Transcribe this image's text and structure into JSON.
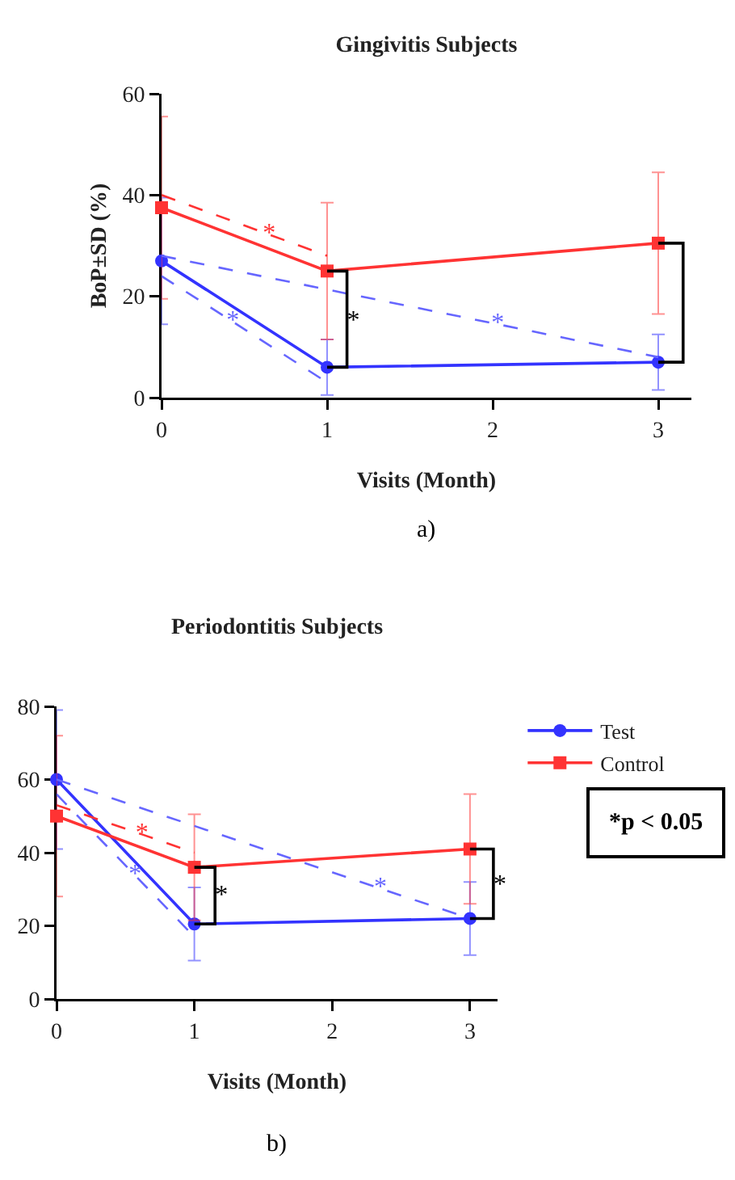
{
  "chart_data": [
    {
      "type": "line",
      "title": "Gingivitis Subjects",
      "xlabel": "Visits (Month)",
      "ylabel": "BoP±SD (%)",
      "x": [
        0,
        1,
        3
      ],
      "xlim": [
        0,
        3.2
      ],
      "xticks": [
        0,
        1,
        2,
        3
      ],
      "ylim": [
        0,
        60
      ],
      "yticks": [
        0,
        20,
        40,
        60
      ],
      "grid": false,
      "legend": false,
      "series": [
        {
          "color": "#3333ff",
          "marker": "circle",
          "values": [
            27,
            6,
            7
          ],
          "errors": [
            12.5,
            5.5,
            5.5
          ]
        },
        {
          "color": "#ff3333",
          "marker": "square",
          "values": [
            37.5,
            25,
            30.5
          ],
          "errors": [
            18,
            13.5,
            14
          ]
        },
        {
          "color": "#ff3333",
          "marker": "none",
          "line_style": "dashed",
          "x": [
            0,
            0.65,
            1
          ],
          "values": [
            40,
            32.2,
            28
          ],
          "value_labels": [
            null,
            "*",
            null
          ]
        },
        {
          "color": "#6666ff",
          "marker": "none",
          "line_style": "dashed",
          "x": [
            0,
            2.03,
            3
          ],
          "values": [
            28,
            14.5,
            8
          ],
          "value_labels": [
            null,
            "*",
            null
          ]
        },
        {
          "color": "#6666ff",
          "marker": "none",
          "line_style": "dashed",
          "x": [
            0,
            0.43,
            1
          ],
          "values": [
            24,
            15,
            3
          ],
          "value_labels": [
            null,
            "*",
            null
          ]
        },
        {
          "color": "#000000",
          "marker": "none",
          "x": [
            1,
            1.12,
            1.12,
            1.12,
            1
          ],
          "values": [
            6,
            6,
            15,
            25,
            25
          ],
          "value_labels": [
            null,
            null,
            "*",
            null,
            null
          ]
        },
        {
          "color": "#000000",
          "marker": "none",
          "x": [
            3,
            3.15,
            3.15,
            3
          ],
          "values": [
            7,
            7,
            30.5,
            30.5
          ]
        }
      ],
      "annotations": [
        "a)"
      ]
    },
    {
      "type": "line",
      "title": "Periodontitis Subjects",
      "xlabel": "Visits (Month)",
      "x": [
        0,
        1,
        3
      ],
      "xlim": [
        0,
        3.2
      ],
      "xticks": [
        0,
        1,
        2,
        3
      ],
      "ylim": [
        0,
        80
      ],
      "yticks": [
        0,
        20,
        40,
        60,
        80
      ],
      "grid": false,
      "legend": "top right",
      "series": [
        {
          "name": "Test",
          "color": "#3333ff",
          "marker": "circle",
          "values": [
            60,
            20.5,
            22
          ],
          "errors": [
            19,
            10,
            10
          ]
        },
        {
          "name": "Control",
          "color": "#ff3333",
          "marker": "square",
          "values": [
            50,
            36,
            41
          ],
          "errors": [
            22,
            14.5,
            15
          ]
        },
        {
          "color": "#ff3333",
          "marker": "none",
          "line_style": "dashed",
          "x": [
            0,
            0.62,
            1
          ],
          "values": [
            53,
            45,
            40
          ],
          "value_labels": [
            null,
            "*",
            null
          ]
        },
        {
          "color": "#6666ff",
          "marker": "none",
          "line_style": "dashed",
          "x": [
            0,
            2.35,
            3
          ],
          "values": [
            60,
            30.2,
            22
          ],
          "value_labels": [
            null,
            "*",
            null
          ]
        },
        {
          "color": "#6666ff",
          "marker": "none",
          "line_style": "dashed",
          "x": [
            0,
            0.57,
            1
          ],
          "values": [
            56,
            33.8,
            17
          ],
          "value_labels": [
            null,
            "*",
            null
          ]
        },
        {
          "color": "#000000",
          "marker": "none",
          "x": [
            1,
            1.15,
            1.15,
            1.15,
            1
          ],
          "values": [
            20.5,
            20.5,
            28,
            36,
            36
          ],
          "value_labels": [
            null,
            null,
            "*",
            null,
            null
          ]
        },
        {
          "color": "#000000",
          "marker": "none",
          "x": [
            3,
            3.17,
            3.17,
            3.17,
            3
          ],
          "values": [
            22,
            22,
            31,
            41,
            41
          ],
          "value_labels": [
            null,
            null,
            "*",
            null,
            null
          ]
        }
      ],
      "annotations": [
        "b)",
        "*p < 0.05"
      ]
    }
  ]
}
